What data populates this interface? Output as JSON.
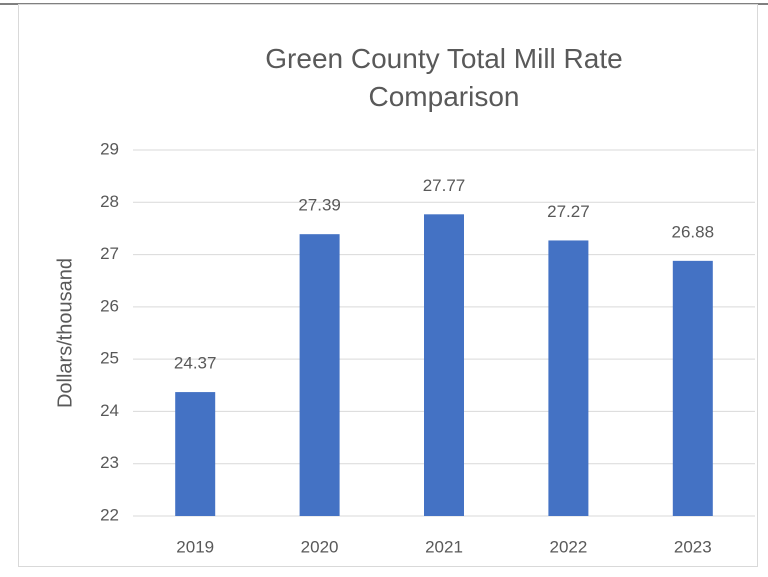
{
  "chart_data": {
    "type": "bar",
    "title": "Green County Total Mill Rate Comparison",
    "y_label": "Dollars/thousand",
    "categories": [
      "2019",
      "2020",
      "2021",
      "2022",
      "2023"
    ],
    "values": [
      24.37,
      27.39,
      27.77,
      27.27,
      26.88
    ],
    "color": "#4472c4",
    "ylim": [
      22,
      29
    ],
    "yticks": [
      22,
      23,
      24,
      25,
      26,
      27,
      28,
      29
    ],
    "grid": true
  }
}
